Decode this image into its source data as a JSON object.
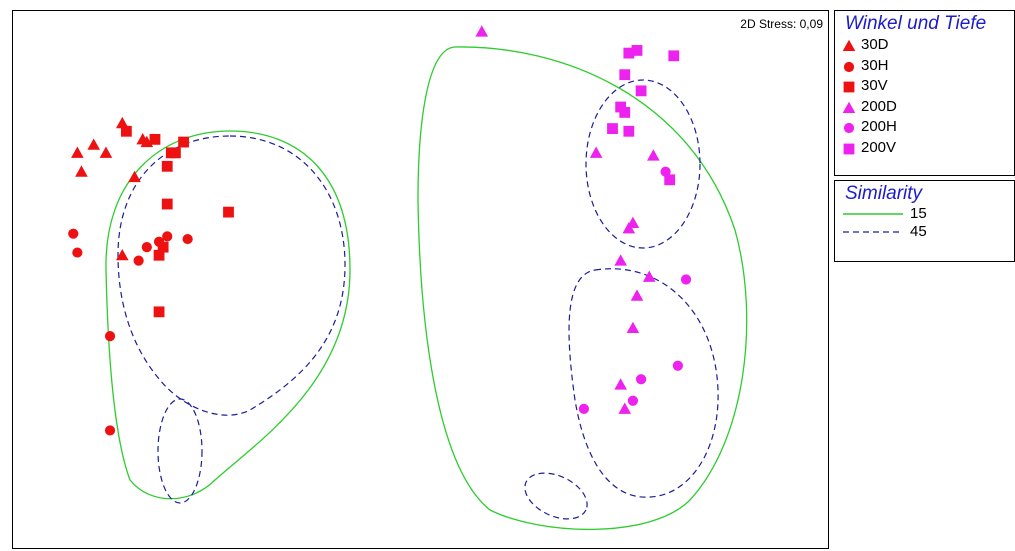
{
  "chart_data": {
    "type": "scatter",
    "title": "",
    "xlabel": "",
    "ylabel": "",
    "stress_label": "2D Stress: 0,09",
    "samples_legend_title": "Winkel und Tiefe",
    "similarity_legend_title": "Similarity",
    "colors": {
      "30": "#ee1111",
      "200": "#ee22ee",
      "sim15": "#2ecc2e",
      "sim45": "#1c1c99"
    },
    "series": [
      {
        "name": "30D",
        "marker": "triangle",
        "color": "#ee1111",
        "points": [
          [
            -0.73,
            0.58
          ],
          [
            -0.8,
            0.5
          ],
          [
            -0.84,
            0.47
          ],
          [
            -0.68,
            0.52
          ],
          [
            -0.67,
            0.51
          ],
          [
            -0.83,
            0.4
          ],
          [
            -0.77,
            0.47
          ],
          [
            -0.7,
            0.38
          ],
          [
            -0.73,
            0.09
          ]
        ]
      },
      {
        "name": "30H",
        "marker": "circle",
        "color": "#ee1111",
        "points": [
          [
            -0.85,
            0.17
          ],
          [
            -0.84,
            0.1
          ],
          [
            -0.67,
            0.12
          ],
          [
            -0.64,
            0.14
          ],
          [
            -0.62,
            0.16
          ],
          [
            -0.69,
            0.07
          ],
          [
            -0.57,
            0.15
          ],
          [
            -0.76,
            -0.21
          ],
          [
            -0.76,
            -0.56
          ]
        ]
      },
      {
        "name": "30V",
        "marker": "square",
        "color": "#ee1111",
        "points": [
          [
            -0.72,
            0.55
          ],
          [
            -0.65,
            0.52
          ],
          [
            -0.58,
            0.51
          ],
          [
            -0.61,
            0.47
          ],
          [
            -0.62,
            0.42
          ],
          [
            -0.6,
            0.47
          ],
          [
            -0.62,
            0.28
          ],
          [
            -0.47,
            0.25
          ],
          [
            -0.64,
            0.09
          ],
          [
            -0.63,
            0.12
          ],
          [
            -0.64,
            -0.12
          ]
        ]
      },
      {
        "name": "200D",
        "marker": "triangle",
        "color": "#ee22ee",
        "points": [
          [
            0.15,
            0.92
          ],
          [
            0.43,
            0.47
          ],
          [
            0.57,
            0.46
          ],
          [
            0.52,
            0.21
          ],
          [
            0.51,
            0.19
          ],
          [
            0.49,
            0.07
          ],
          [
            0.56,
            0.01
          ],
          [
            0.53,
            -0.06
          ],
          [
            0.52,
            -0.18
          ],
          [
            0.49,
            -0.39
          ],
          [
            0.5,
            -0.48
          ]
        ]
      },
      {
        "name": "200H",
        "marker": "circle",
        "color": "#ee22ee",
        "points": [
          [
            0.6,
            0.4
          ],
          [
            0.65,
            0.0
          ],
          [
            0.63,
            -0.32
          ],
          [
            0.54,
            -0.37
          ],
          [
            0.52,
            -0.45
          ],
          [
            0.4,
            -0.48
          ]
        ]
      },
      {
        "name": "200V",
        "marker": "square",
        "color": "#ee22ee",
        "points": [
          [
            0.51,
            0.84
          ],
          [
            0.53,
            0.85
          ],
          [
            0.62,
            0.83
          ],
          [
            0.5,
            0.76
          ],
          [
            0.54,
            0.7
          ],
          [
            0.49,
            0.64
          ],
          [
            0.5,
            0.62
          ],
          [
            0.47,
            0.56
          ],
          [
            0.51,
            0.55
          ],
          [
            0.61,
            0.37
          ]
        ]
      }
    ],
    "similarity_contours": [
      {
        "level": "15",
        "style": "solid",
        "color": "#2ecc2e"
      },
      {
        "level": "45",
        "style": "dashed",
        "color": "#1c1c99"
      }
    ],
    "grid": false
  }
}
